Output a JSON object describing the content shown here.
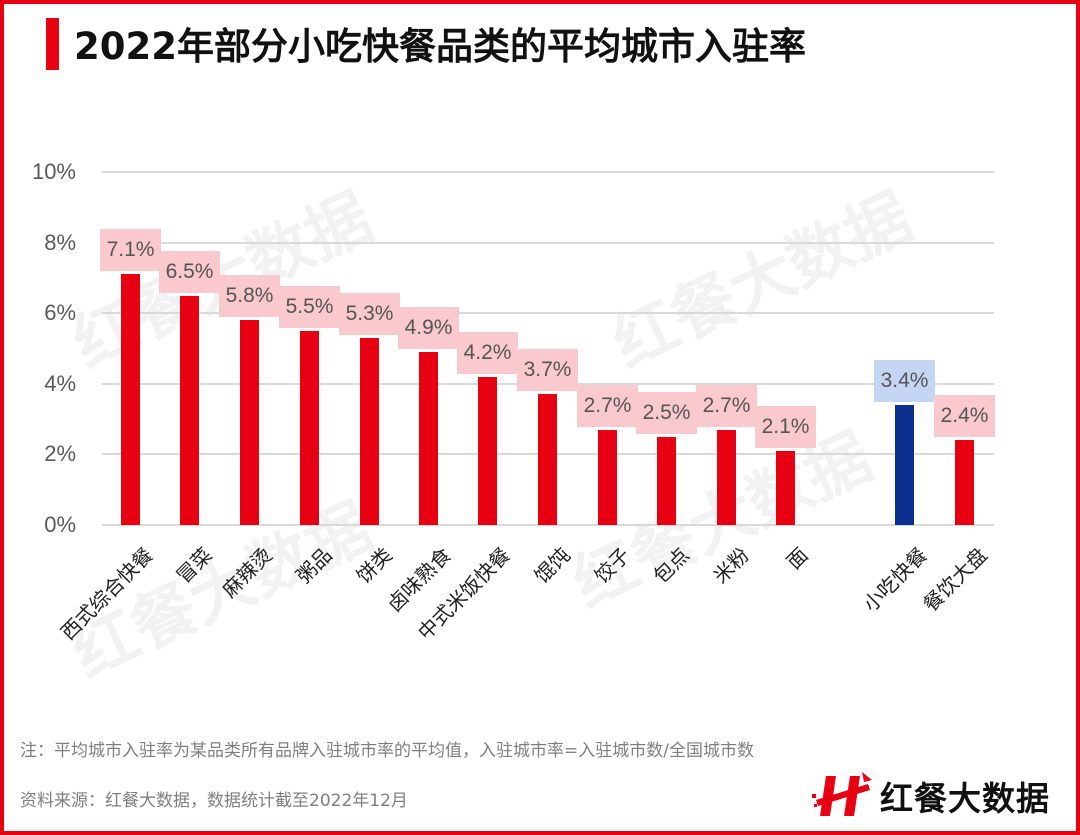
{
  "title": "2022年部分小吃快餐品类的平均城市入驻率",
  "chart_data": {
    "type": "bar",
    "title": "2022年部分小吃快餐品类的平均城市入驻率",
    "xlabel": "",
    "ylabel": "",
    "ylim": [
      0,
      10
    ],
    "yticks": [
      "0%",
      "2%",
      "4%",
      "6%",
      "8%",
      "10%"
    ],
    "grid": true,
    "categories": [
      "西式综合快餐",
      "冒菜",
      "麻辣烫",
      "粥品",
      "饼类",
      "卤味熟食",
      "中式米饭快餐",
      "馄饨",
      "饺子",
      "包点",
      "米粉",
      "面",
      "小吃快餐",
      "餐饮大盘"
    ],
    "values": [
      7.1,
      6.5,
      5.8,
      5.5,
      5.3,
      4.9,
      4.2,
      3.7,
      2.7,
      2.5,
      2.7,
      2.1,
      3.4,
      2.4
    ],
    "data_labels": [
      "7.1%",
      "6.5%",
      "5.8%",
      "5.5%",
      "5.3%",
      "4.9%",
      "4.2%",
      "3.7%",
      "2.7%",
      "2.5%",
      "2.7%",
      "2.1%",
      "3.4%",
      "2.4%"
    ],
    "colors": {
      "default_bar": "#e60012",
      "highlight_bar": "#0a2f8f",
      "label_bg_default": "#f9c9cd",
      "label_bg_highlight": "#c5d6f5"
    },
    "highlight_category": "小吃快餐"
  },
  "footer": {
    "note": "注：平均城市入驻率为某品类所有品牌入驻城市率的平均值，入驻城市率=入驻城市数/全国城市数",
    "source": "资料来源：红餐大数据，数据统计截至2022年12月"
  },
  "logo": {
    "text": "红餐大数据",
    "icon": "hongcan-h-logo-icon"
  },
  "watermark": "红餐大数据"
}
